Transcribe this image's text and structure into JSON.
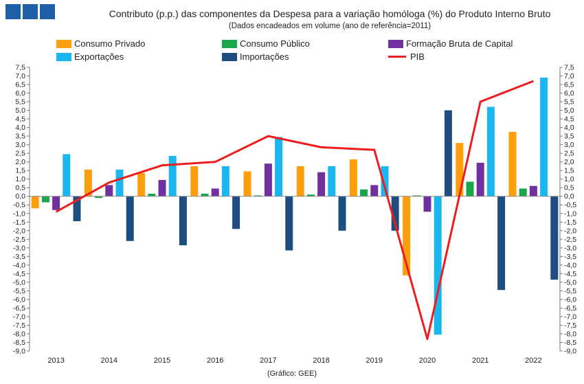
{
  "header": {
    "title": "Contributo (p.p.) das componentes da Despesa para a variação homóloga (%) do Produto Interno Bruto",
    "subtitle": "(Dados encadeados em volume (ano de referência=2011)"
  },
  "footer": {
    "source": "(Gráfico: GEE)"
  },
  "chart_data": {
    "type": "bar",
    "title": "Contributo (p.p.) das componentes da Despesa para a variação homóloga (%) do Produto Interno Bruto",
    "subtitle": "(Dados encadeados em volume (ano de referência=2011)",
    "categories": [
      "2013",
      "2014",
      "2015",
      "2016",
      "2017",
      "2018",
      "2019",
      "2020",
      "2021",
      "2022"
    ],
    "ylim": [
      -9.0,
      7.5
    ],
    "ytick_step": 0.5,
    "ytick_labels": [
      "7,5",
      "7,0",
      "6,5",
      "6,0",
      "5,5",
      "5,0",
      "4,5",
      "4,0",
      "3,5",
      "3,0",
      "2,5",
      "2,0",
      "1,5",
      "1,0",
      "0,5",
      "0,0",
      "-0,5",
      "-1,0",
      "-1,5",
      "-2,0",
      "-2,5",
      "-3,0",
      "-3,5",
      "-4,0",
      "-4,5",
      "-5,0",
      "-5,5",
      "-6,0",
      "-6,5",
      "-7,0",
      "-7,5",
      "-8,0",
      "-8,5",
      "-9,0"
    ],
    "grid": false,
    "legend_position": "top",
    "series": [
      {
        "name": "Consumo Privado",
        "kind": "bar",
        "color": "#ff9e0c",
        "values": [
          -0.7,
          1.55,
          1.35,
          1.75,
          1.45,
          1.75,
          2.15,
          -4.6,
          3.1,
          3.75
        ]
      },
      {
        "name": "Consumo Público",
        "kind": "bar",
        "color": "#1aa64a",
        "values": [
          -0.35,
          -0.1,
          0.15,
          0.15,
          0.05,
          0.1,
          0.4,
          0.05,
          0.85,
          0.45
        ]
      },
      {
        "name": "Formação Bruta de Capital",
        "kind": "bar",
        "color": "#7030a0",
        "values": [
          -0.8,
          0.65,
          0.95,
          0.45,
          1.9,
          1.4,
          0.65,
          -0.9,
          1.95,
          0.6
        ]
      },
      {
        "name": "Exportações",
        "kind": "bar",
        "color": "#19b6f0",
        "values": [
          2.45,
          1.55,
          2.35,
          1.75,
          3.45,
          1.75,
          1.75,
          -8.05,
          5.2,
          6.9
        ]
      },
      {
        "name": "Importações",
        "kind": "bar",
        "color": "#1e4d80",
        "values": [
          -1.45,
          -2.6,
          -2.85,
          -1.9,
          -3.15,
          -2.0,
          -2.0,
          5.0,
          -5.45,
          -4.85
        ]
      },
      {
        "name": "PIB",
        "kind": "line",
        "color": "#ee1c1c",
        "values": [
          -0.9,
          0.8,
          1.8,
          2.0,
          3.5,
          2.85,
          2.7,
          -8.3,
          5.5,
          6.7
        ]
      }
    ]
  }
}
